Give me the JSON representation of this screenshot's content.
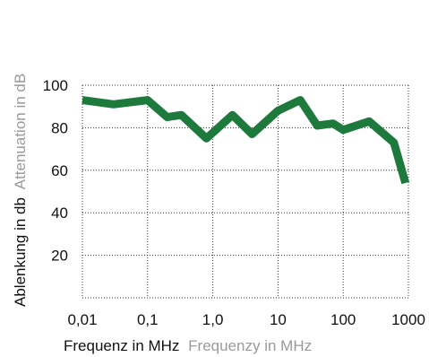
{
  "chart_data": {
    "type": "line",
    "title": "",
    "xlabel": "Frequenz in MHz",
    "xlabel_secondary": "Frequenzy in MHz",
    "ylabel": "Ablenkung in db",
    "ylabel_secondary": "Attenuation in dB",
    "x_scale": "log",
    "xlim": [
      0.01,
      1000
    ],
    "ylim": [
      0,
      100
    ],
    "x_ticks": [
      0.01,
      0.1,
      1,
      10,
      100,
      1000
    ],
    "x_tick_labels": [
      "0,01",
      "0,1",
      "1,0",
      "10",
      "100",
      "1000"
    ],
    "y_ticks": [
      20,
      40,
      60,
      80,
      100
    ],
    "y_tick_labels": [
      "20",
      "40",
      "60",
      "80",
      "100"
    ],
    "grid": true,
    "legend": "none",
    "series": [
      {
        "color": "#1e7a3c",
        "x": [
          0.01,
          0.03,
          0.1,
          0.2,
          0.33,
          0.8,
          2,
          4,
          10,
          22,
          40,
          70,
          100,
          250,
          600,
          900
        ],
        "y": [
          93,
          91,
          93,
          85,
          86,
          75,
          86,
          77,
          88,
          93,
          81,
          82,
          79,
          83,
          73,
          54
        ]
      }
    ]
  },
  "colors": {
    "line": "#1e7a3c",
    "grid": "#333333",
    "text_primary": "#111111",
    "text_secondary": "#9a9a9a"
  }
}
